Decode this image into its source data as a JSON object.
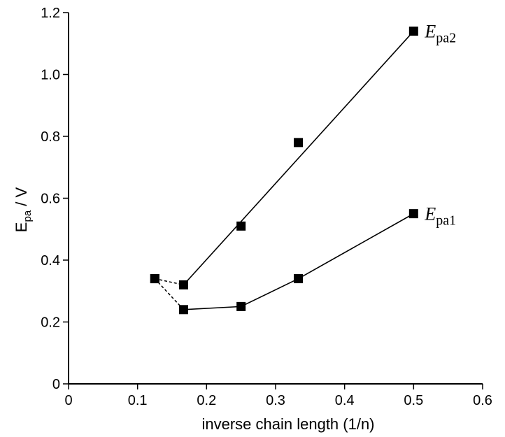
{
  "chart_data": {
    "type": "scatter",
    "xlabel": "inverse chain length (1/n)",
    "ylabel": {
      "main": "E",
      "sub": "pa",
      "rest": " / V"
    },
    "xlim": [
      0,
      0.6
    ],
    "ylim": [
      0,
      1.2
    ],
    "xticks": [
      0,
      0.1,
      0.2,
      0.3,
      0.4,
      0.5,
      0.6
    ],
    "yticks": [
      0,
      0.2,
      0.4,
      0.6,
      0.8,
      1.0,
      1.2
    ],
    "xtick_labels": [
      "0",
      "0.1",
      "0.2",
      "0.3",
      "0.4",
      "0.5",
      "0.6"
    ],
    "ytick_labels": [
      "0",
      "0.2",
      "0.4",
      "0.6",
      "0.8",
      "1.0",
      "1.2"
    ],
    "grid": false,
    "series": [
      {
        "name": "Epa2",
        "label": {
          "main": "E",
          "sub": "pa2"
        },
        "points": [
          [
            0.125,
            0.34
          ],
          [
            0.1667,
            0.32
          ],
          [
            0.25,
            0.51
          ],
          [
            0.333,
            0.78
          ],
          [
            0.5,
            1.14
          ]
        ],
        "fit_line": [
          [
            0.1667,
            0.32
          ],
          [
            0.5,
            1.14
          ]
        ],
        "dashed_segment": [
          [
            0.125,
            0.34
          ],
          [
            0.1667,
            0.32
          ]
        ]
      },
      {
        "name": "Epa1",
        "label": {
          "main": "E",
          "sub": "pa1"
        },
        "points": [
          [
            0.125,
            0.34
          ],
          [
            0.1667,
            0.24
          ],
          [
            0.25,
            0.25
          ],
          [
            0.333,
            0.34
          ],
          [
            0.5,
            0.55
          ]
        ],
        "solid_line": [
          [
            0.1667,
            0.24
          ],
          [
            0.25,
            0.25
          ],
          [
            0.333,
            0.34
          ],
          [
            0.5,
            0.55
          ]
        ],
        "dashed_segment": [
          [
            0.125,
            0.34
          ],
          [
            0.1667,
            0.24
          ]
        ]
      }
    ]
  }
}
